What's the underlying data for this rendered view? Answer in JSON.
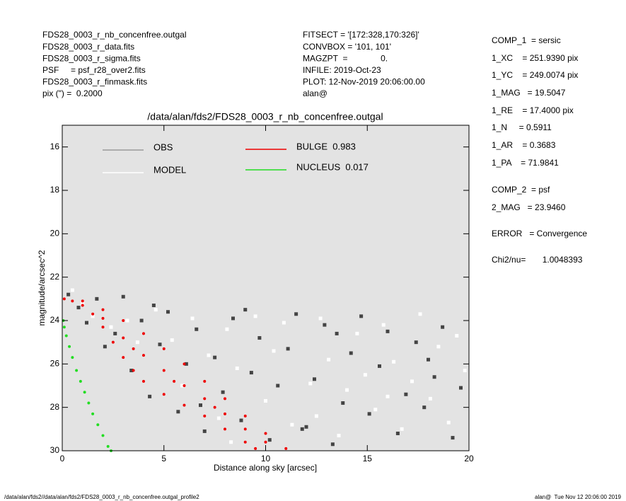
{
  "header": {
    "left": [
      "FDS28_0003_r_nb_concenfree.outgal",
      "FDS28_0003_r_data.fits",
      "FDS28_0003_r_sigma.fits",
      "PSF     = psf_r28_over2.fits",
      "FDS28_0003_r_finmask.fits",
      "pix (\") =  0.2000"
    ],
    "middle": [
      "FITSECT = '[172:328,170:326]'",
      "CONVBOX = '101, 101'",
      "MAGZPT  =              0.",
      "INFILE: 2019-Oct-23",
      "PLOT: 12-Nov-2019 20:06:00.00",
      "alan@"
    ]
  },
  "fit_parameters": [
    "COMP_1  = sersic",
    "1_XC    = 251.9390 pix",
    "1_YC    = 249.0074 pix",
    "1_MAG   = 19.5047",
    "1_RE    = 17.4000 pix",
    "1_N     = 0.5911",
    "1_AR    = 0.3683",
    "1_PA    = 71.9841",
    "COMP_2  = psf",
    "2_MAG   = 23.9460",
    "ERROR   = Convergence",
    "Chi2/nu=       1.0048393"
  ],
  "footer": {
    "left": "/data/alan/fds2//data/alan/fds2/FDS28_0003_r_nb_concenfree.outgal_profile2",
    "right": "alan@  Tue Nov 12 20:06:00 2019"
  },
  "chart_data": {
    "type": "scatter",
    "title": "/data/alan/fds2/FDS28_0003_r_nb_concenfree.outgal",
    "x_label": "Distance along sky [arcsec]",
    "y_label": "magnitude/arcsec^2",
    "xlim": [
      0,
      20
    ],
    "xticks": [
      0,
      5,
      10,
      15,
      20
    ],
    "ylim": [
      30,
      15
    ],
    "yticks": [
      16,
      18,
      20,
      22,
      24,
      26,
      28,
      30
    ],
    "background": "#e3e3e3",
    "series": [
      {
        "name": "OBS",
        "color": "#444444",
        "legend_color": "#9a9a9a",
        "x": [
          0.3,
          0.8,
          1.2,
          1.7,
          2.1,
          2.6,
          3.0,
          3.4,
          3.9,
          4.3,
          4.8,
          5.2,
          5.7,
          6.1,
          6.6,
          7.0,
          7.5,
          7.9,
          8.4,
          8.8,
          9.3,
          9.7,
          10.2,
          10.6,
          11.1,
          11.5,
          12.0,
          12.4,
          12.9,
          13.3,
          13.8,
          14.2,
          14.7,
          15.1,
          15.6,
          16.0,
          16.5,
          16.9,
          17.4,
          17.8,
          18.3,
          18.7,
          19.2,
          19.6,
          4.5,
          9.0,
          13.5,
          18.0,
          6.8,
          11.8
        ],
        "values": [
          22.8,
          23.4,
          24.1,
          23.0,
          25.2,
          24.6,
          22.9,
          26.3,
          24.0,
          27.5,
          25.1,
          23.6,
          28.2,
          26.0,
          24.4,
          29.1,
          25.7,
          27.3,
          23.9,
          28.6,
          26.4,
          24.8,
          29.5,
          27.0,
          25.3,
          23.7,
          28.9,
          26.7,
          24.2,
          29.7,
          27.8,
          25.5,
          23.8,
          28.3,
          26.1,
          24.5,
          29.2,
          27.4,
          25.0,
          28.0,
          26.6,
          24.3,
          29.4,
          27.1,
          23.3,
          23.5,
          24.6,
          25.8,
          27.9,
          29.0
        ]
      },
      {
        "name": "MODEL",
        "color": "#ffffff",
        "legend_color": "#ffffff",
        "x": [
          0.5,
          1.0,
          1.5,
          2.4,
          3.2,
          3.7,
          4.6,
          5.4,
          5.9,
          6.4,
          7.2,
          7.7,
          8.1,
          8.6,
          9.5,
          10.0,
          10.4,
          10.9,
          11.3,
          12.2,
          12.7,
          13.1,
          13.6,
          14.0,
          14.5,
          14.9,
          15.4,
          15.8,
          16.3,
          16.7,
          17.2,
          17.6,
          18.1,
          18.5,
          19.0,
          19.4,
          19.8,
          8.3,
          12.5,
          16.0
        ],
        "values": [
          22.6,
          23.2,
          23.8,
          24.3,
          24.0,
          25.0,
          23.5,
          24.9,
          27.0,
          23.9,
          25.6,
          28.5,
          24.4,
          26.2,
          23.8,
          27.7,
          25.4,
          24.1,
          28.8,
          26.9,
          23.9,
          25.8,
          29.3,
          27.2,
          24.6,
          26.5,
          28.1,
          24.2,
          25.9,
          29.0,
          26.8,
          23.7,
          27.6,
          25.2,
          28.7,
          24.7,
          26.3,
          29.6,
          28.4,
          27.5
        ]
      },
      {
        "name": "BULGE  0.983",
        "color": "#ee0000",
        "legend_color": "#ee0000",
        "x": [
          0.1,
          1,
          2,
          3,
          4,
          5,
          6,
          7,
          8,
          9,
          10,
          11,
          0.5,
          1,
          1.5,
          2,
          2.5,
          3,
          3.5,
          4,
          5,
          6,
          7,
          8,
          9,
          9.5,
          2,
          3,
          4,
          5,
          6,
          7,
          8,
          9,
          10,
          3.5,
          5.5,
          7.5
        ],
        "values": [
          23.0,
          23.1,
          23.5,
          24.0,
          24.6,
          25.3,
          26.0,
          26.8,
          27.6,
          28.4,
          29.2,
          29.9,
          23.1,
          23.3,
          23.7,
          24.3,
          25.0,
          25.7,
          26.3,
          26.8,
          27.4,
          27.9,
          28.4,
          29.0,
          29.6,
          29.9,
          23.9,
          24.8,
          25.6,
          26.3,
          27.0,
          27.6,
          28.3,
          29.0,
          29.6,
          25.3,
          26.8,
          28.0
        ]
      },
      {
        "name": "NUCLEUS  0.017",
        "color": "#22dd22",
        "legend_color": "#22dd22",
        "x": [
          0.05,
          0.1,
          0.2,
          0.35,
          0.5,
          0.7,
          0.9,
          1.1,
          1.3,
          1.5,
          1.75,
          2.0,
          2.25,
          2.4
        ],
        "values": [
          24.0,
          24.3,
          24.7,
          25.2,
          25.7,
          26.3,
          26.8,
          27.3,
          27.8,
          28.3,
          28.8,
          29.3,
          29.8,
          30.0
        ]
      }
    ]
  }
}
